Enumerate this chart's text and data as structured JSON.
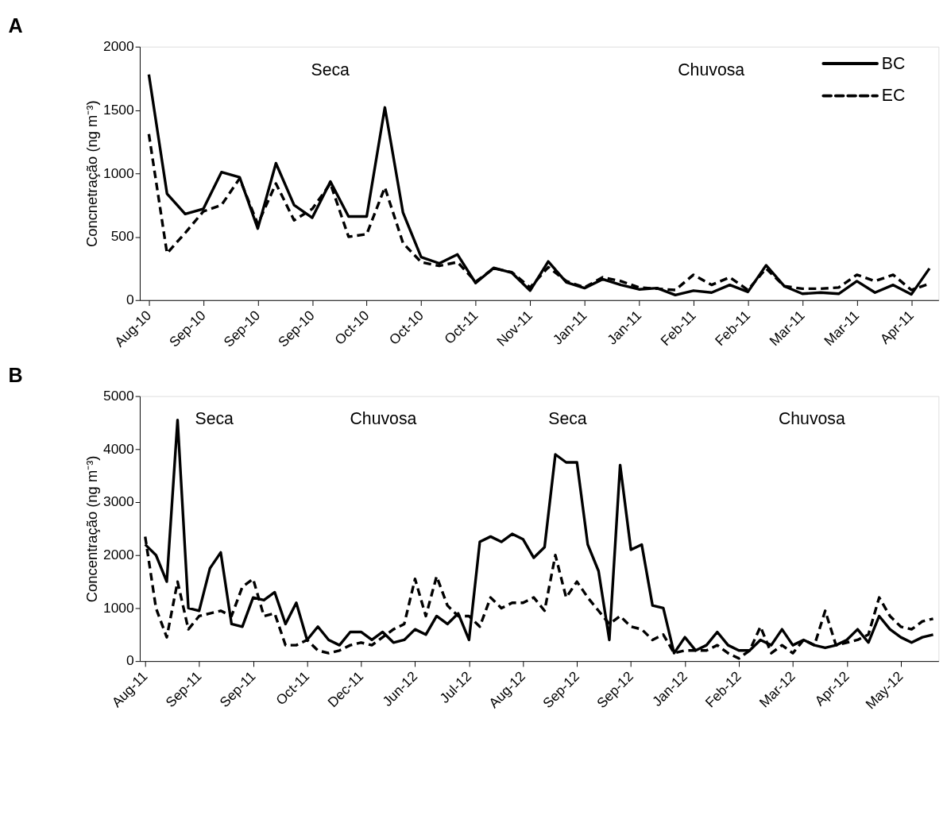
{
  "chart_data": [
    {
      "type": "line",
      "title": "A",
      "ylabel": "Concnetração (ng m⁻³)",
      "categories": [
        "Aug-10",
        null,
        null,
        "Sep-10",
        null,
        null,
        "Sep-10",
        null,
        null,
        "Sep-10",
        null,
        null,
        "Oct-10",
        null,
        null,
        "Oct-10",
        null,
        null,
        "Oct-11",
        null,
        null,
        "Nov-11",
        null,
        null,
        "Jan-11",
        null,
        null,
        "Jan-11",
        null,
        null,
        "Feb-11",
        null,
        null,
        "Feb-11",
        null,
        null,
        "Mar-11",
        null,
        null,
        "Mar-11",
        null,
        null,
        "Apr-11",
        null
      ],
      "series": [
        {
          "name": "BC",
          "color": "#000000",
          "line_style": "solid",
          "values": [
            1780,
            840,
            680,
            720,
            1010,
            970,
            565,
            1080,
            750,
            650,
            935,
            660,
            660,
            1520,
            690,
            340,
            290,
            360,
            135,
            255,
            215,
            75,
            305,
            140,
            95,
            165,
            120,
            85,
            95,
            40,
            75,
            60,
            120,
            65,
            275,
            110,
            50,
            60,
            50,
            150,
            60,
            120,
            45,
            250
          ]
        },
        {
          "name": "EC",
          "color": "#000000",
          "line_style": "dashed",
          "values": [
            1310,
            370,
            530,
            700,
            750,
            960,
            600,
            920,
            630,
            720,
            920,
            500,
            520,
            890,
            450,
            300,
            270,
            300,
            145,
            250,
            220,
            100,
            260,
            150,
            100,
            180,
            150,
            100,
            90,
            80,
            200,
            120,
            180,
            80,
            250,
            110,
            90,
            90,
            100,
            200,
            150,
            200,
            80,
            130
          ]
        }
      ],
      "ylim": [
        0,
        2000
      ],
      "yticks": [
        0,
        500,
        1000,
        1500,
        2000
      ],
      "grid": false,
      "legend": "top right",
      "marker": "none",
      "annotations": [
        "Seca",
        "Chuvosa"
      ]
    },
    {
      "type": "line",
      "title": "B",
      "ylabel": "Concentração (ng m⁻³)",
      "categories": [
        "Aug-11",
        null,
        null,
        null,
        null,
        "Sep-11",
        null,
        null,
        null,
        null,
        "Sep-11",
        null,
        null,
        null,
        null,
        "Oct-11",
        null,
        null,
        null,
        null,
        "Dec-11",
        null,
        null,
        null,
        null,
        "Jun-12",
        null,
        null,
        null,
        null,
        "Jul-12",
        null,
        null,
        null,
        null,
        "Aug-12",
        null,
        null,
        null,
        null,
        "Sep-12",
        null,
        null,
        null,
        null,
        "Sep-12",
        null,
        null,
        null,
        null,
        "Jan-12",
        null,
        null,
        null,
        null,
        "Feb-12",
        null,
        null,
        null,
        null,
        "Mar-12",
        null,
        null,
        null,
        null,
        "Apr-12",
        null,
        null,
        null,
        null,
        "May-12",
        null,
        null,
        null
      ],
      "series": [
        {
          "color": "#000000",
          "line_style": "solid",
          "values": [
            2200,
            2000,
            1500,
            4550,
            1000,
            950,
            1750,
            2050,
            700,
            650,
            1200,
            1150,
            1300,
            700,
            1100,
            400,
            650,
            400,
            300,
            550,
            550,
            400,
            550,
            350,
            400,
            600,
            500,
            850,
            700,
            900,
            400,
            2250,
            2350,
            2250,
            2400,
            2300,
            1950,
            2150,
            3900,
            3750,
            3750,
            2200,
            1700,
            400,
            3700,
            2100,
            2200,
            1050,
            1000,
            150,
            450,
            200,
            300,
            550,
            300,
            200,
            200,
            400,
            300,
            600,
            300,
            400,
            300,
            250,
            300,
            400,
            600,
            350,
            850,
            600,
            450,
            350,
            450,
            500
          ]
        },
        {
          "color": "#000000",
          "line_style": "dashed",
          "values": [
            2350,
            1000,
            450,
            1500,
            600,
            850,
            900,
            950,
            850,
            1400,
            1550,
            850,
            900,
            300,
            300,
            400,
            200,
            150,
            200,
            300,
            350,
            300,
            450,
            600,
            700,
            1550,
            850,
            1600,
            1050,
            850,
            850,
            650,
            1200,
            1000,
            1100,
            1100,
            1200,
            950,
            2000,
            1200,
            1500,
            1200,
            950,
            700,
            850,
            650,
            600,
            400,
            500,
            150,
            200,
            200,
            200,
            300,
            150,
            50,
            200,
            650,
            150,
            300,
            150,
            400,
            300,
            950,
            300,
            350,
            400,
            500,
            1200,
            850,
            650,
            600,
            750,
            800
          ]
        }
      ],
      "ylim": [
        0,
        5000
      ],
      "yticks": [
        0,
        1000,
        2000,
        3000,
        4000,
        5000
      ],
      "grid": false,
      "marker": "none",
      "annotations": [
        "Seca",
        "Chuvosa",
        "Seca",
        "Chuvosa"
      ]
    }
  ]
}
